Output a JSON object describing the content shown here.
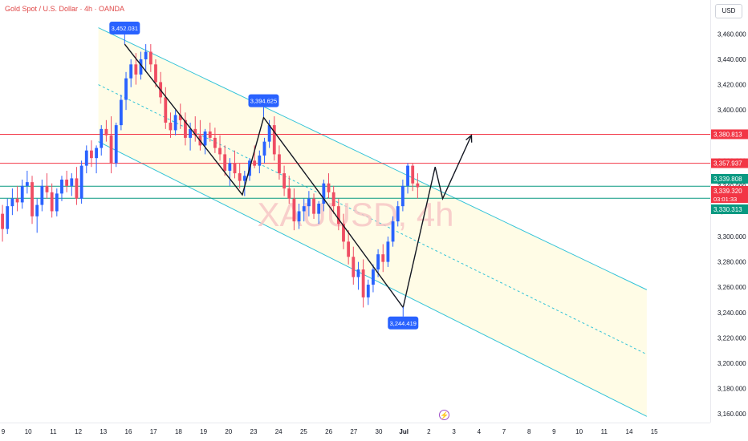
{
  "header": {
    "symbol_title": "Gold Spot / U.S. Dollar · 4h · OANDA"
  },
  "toolbar": {
    "currency": "USD"
  },
  "watermark": "XAUUSD, 4h",
  "colors": {
    "bull": "#2962ff",
    "bear": "#ef4d63",
    "channel": "#33c3d8",
    "channel_fill": "#fffce6",
    "hline_red": "#f23645",
    "hline_green": "#089981",
    "annotation": "#2962ff",
    "line_draw": "#131722"
  },
  "chart_data": {
    "type": "candlestick",
    "title": "Gold Spot / U.S. Dollar · 4h · OANDA",
    "ylim": [
      3155,
      3478
    ],
    "y_ticks": [
      3160,
      3180,
      3200,
      3220,
      3240,
      3260,
      3280,
      3300,
      3320,
      3340,
      3360,
      3380,
      3400,
      3420,
      3440,
      3460
    ],
    "y_tick_labels": [
      "3,160.000",
      "3,180.000",
      "3,200.000",
      "3,220.000",
      "3,240.000",
      "3,260.000",
      "3,280.000",
      "3,300.000",
      "3,320.000",
      "3,340.000",
      "3,360.000",
      "3,380.000",
      "3,400.000",
      "3,420.000",
      "3,440.000",
      "3,460.000"
    ],
    "x_labels": [
      "9",
      "10",
      "11",
      "12",
      "13",
      "16",
      "17",
      "18",
      "19",
      "20",
      "23",
      "24",
      "25",
      "26",
      "27",
      "30",
      "Jul",
      "2",
      "3",
      "4",
      "7",
      "8",
      "9",
      "10",
      "11",
      "14",
      "15"
    ],
    "grid": false,
    "candles": [
      [
        3318,
        3325,
        3296,
        3306
      ],
      [
        3306,
        3330,
        3302,
        3324
      ],
      [
        3324,
        3338,
        3317,
        3330
      ],
      [
        3330,
        3340,
        3320,
        3327
      ],
      [
        3327,
        3345,
        3322,
        3340
      ],
      [
        3340,
        3352,
        3334,
        3343
      ],
      [
        3343,
        3348,
        3310,
        3316
      ],
      [
        3316,
        3330,
        3303,
        3325
      ],
      [
        3325,
        3345,
        3320,
        3340
      ],
      [
        3340,
        3350,
        3330,
        3335
      ],
      [
        3335,
        3342,
        3315,
        3320
      ],
      [
        3320,
        3338,
        3316,
        3334
      ],
      [
        3334,
        3348,
        3328,
        3345
      ],
      [
        3345,
        3352,
        3335,
        3340
      ],
      [
        3340,
        3350,
        3332,
        3346
      ],
      [
        3346,
        3355,
        3325,
        3330
      ],
      [
        3330,
        3360,
        3326,
        3356
      ],
      [
        3356,
        3372,
        3350,
        3368
      ],
      [
        3368,
        3376,
        3355,
        3362
      ],
      [
        3362,
        3372,
        3350,
        3370
      ],
      [
        3370,
        3388,
        3364,
        3385
      ],
      [
        3385,
        3392,
        3375,
        3380
      ],
      [
        3380,
        3395,
        3350,
        3358
      ],
      [
        3358,
        3390,
        3355,
        3388
      ],
      [
        3388,
        3412,
        3384,
        3408
      ],
      [
        3408,
        3430,
        3400,
        3425
      ],
      [
        3425,
        3440,
        3418,
        3436
      ],
      [
        3436,
        3445,
        3420,
        3428
      ],
      [
        3428,
        3446,
        3424,
        3440
      ],
      [
        3440,
        3452,
        3430,
        3446
      ],
      [
        3446,
        3452,
        3430,
        3436
      ],
      [
        3436,
        3440,
        3418,
        3422
      ],
      [
        3422,
        3430,
        3405,
        3410
      ],
      [
        3410,
        3418,
        3385,
        3390
      ],
      [
        3390,
        3398,
        3378,
        3384
      ],
      [
        3384,
        3400,
        3380,
        3396
      ],
      [
        3396,
        3405,
        3385,
        3392
      ],
      [
        3392,
        3398,
        3372,
        3378
      ],
      [
        3378,
        3390,
        3368,
        3385
      ],
      [
        3385,
        3395,
        3375,
        3380
      ],
      [
        3380,
        3392,
        3368,
        3372
      ],
      [
        3372,
        3385,
        3365,
        3383
      ],
      [
        3383,
        3390,
        3375,
        3378
      ],
      [
        3378,
        3386,
        3366,
        3370
      ],
      [
        3370,
        3380,
        3360,
        3365
      ],
      [
        3365,
        3372,
        3348,
        3352
      ],
      [
        3352,
        3362,
        3340,
        3358
      ],
      [
        3358,
        3368,
        3346,
        3350
      ],
      [
        3350,
        3358,
        3338,
        3344
      ],
      [
        3344,
        3352,
        3332,
        3348
      ],
      [
        3348,
        3362,
        3344,
        3360
      ],
      [
        3360,
        3372,
        3354,
        3356
      ],
      [
        3356,
        3368,
        3350,
        3364
      ],
      [
        3364,
        3378,
        3358,
        3375
      ],
      [
        3375,
        3392,
        3370,
        3388
      ],
      [
        3388,
        3395,
        3360,
        3365
      ],
      [
        3365,
        3372,
        3345,
        3350
      ],
      [
        3350,
        3356,
        3332,
        3338
      ],
      [
        3338,
        3348,
        3326,
        3330
      ],
      [
        3330,
        3338,
        3305,
        3312
      ],
      [
        3312,
        3326,
        3306,
        3320
      ],
      [
        3320,
        3330,
        3312,
        3324
      ],
      [
        3324,
        3336,
        3316,
        3330
      ],
      [
        3330,
        3334,
        3314,
        3318
      ],
      [
        3318,
        3328,
        3310,
        3326
      ],
      [
        3326,
        3345,
        3320,
        3342
      ],
      [
        3342,
        3350,
        3330,
        3335
      ],
      [
        3335,
        3340,
        3318,
        3324
      ],
      [
        3324,
        3330,
        3305,
        3310
      ],
      [
        3310,
        3318,
        3290,
        3296
      ],
      [
        3296,
        3305,
        3278,
        3284
      ],
      [
        3284,
        3292,
        3262,
        3268
      ],
      [
        3268,
        3280,
        3258,
        3274
      ],
      [
        3274,
        3282,
        3244,
        3252
      ],
      [
        3252,
        3266,
        3246,
        3262
      ],
      [
        3262,
        3278,
        3256,
        3274
      ],
      [
        3274,
        3290,
        3268,
        3286
      ],
      [
        3286,
        3294,
        3272,
        3280
      ],
      [
        3280,
        3300,
        3276,
        3296
      ],
      [
        3296,
        3316,
        3292,
        3312
      ],
      [
        3312,
        3328,
        3308,
        3324
      ],
      [
        3324,
        3345,
        3320,
        3340
      ],
      [
        3340,
        3358,
        3334,
        3356
      ],
      [
        3356,
        3358,
        3336,
        3342
      ],
      [
        3342,
        3350,
        3330,
        3339
      ]
    ],
    "last_bar_x": 16.55,
    "price_labels": [
      {
        "text": "3,380.813",
        "value": 3380.813,
        "color": "#f23645"
      },
      {
        "text": "3,357.937",
        "value": 3357.937,
        "color": "#f23645"
      },
      {
        "text": "3,339.808",
        "value": 3339.808,
        "color": "#089981"
      },
      {
        "text": "3,339.320",
        "value": 3339.32,
        "color": "#f23645"
      },
      {
        "text": "03:01:33",
        "value": 3339.32,
        "color": "#f23645",
        "sub": true
      },
      {
        "text": "3,330.313",
        "value": 3330.313,
        "color": "#089981"
      }
    ],
    "annotations": [
      {
        "text": "3,452.031",
        "x": 4.85,
        "y": 3452.031,
        "pos": "above"
      },
      {
        "text": "3,394.625",
        "x": 10.4,
        "y": 3394.625,
        "pos": "above"
      },
      {
        "text": "3,244.419",
        "x": 15.97,
        "y": 3244.419,
        "pos": "below"
      }
    ],
    "zigzag": [
      [
        4.85,
        3452
      ],
      [
        9.55,
        3333
      ],
      [
        10.4,
        3394
      ],
      [
        12.5,
        3338
      ],
      [
        15.97,
        3244
      ],
      [
        17.25,
        3355
      ],
      [
        17.55,
        3330
      ],
      [
        18.7,
        3380
      ]
    ],
    "horizontal_levels": [
      {
        "value": 3380.813,
        "color": "#f23645"
      },
      {
        "value": 3357.937,
        "color": "#f23645"
      },
      {
        "value": 3339.808,
        "color": "#089981"
      },
      {
        "value": 3330.313,
        "color": "#089981"
      }
    ],
    "channel": {
      "upper": [
        [
          3.8,
          3465
        ],
        [
          25.7,
          3258
        ]
      ],
      "lower": [
        [
          3.8,
          3375
        ],
        [
          25.7,
          3158
        ]
      ],
      "mid": [
        [
          3.8,
          3420
        ],
        [
          25.7,
          3207
        ]
      ]
    }
  }
}
